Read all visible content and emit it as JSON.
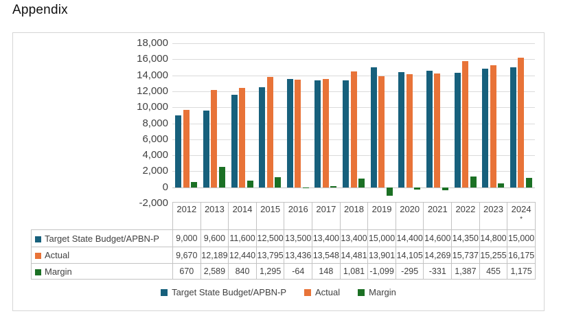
{
  "title": "Appendix",
  "colors": {
    "target": "#17607C",
    "actual": "#E87338",
    "margin": "#1B7024",
    "gridline": "#DADADA",
    "zero_axis_line": "#C4C4C4",
    "table_border": "#C3C3C3",
    "text": "#3F3F3F"
  },
  "chart_data": {
    "type": "bar",
    "title": "Appendix",
    "categories": [
      "2012",
      "2013",
      "2014",
      "2015",
      "2016",
      "2017",
      "2018",
      "2019",
      "2020",
      "2021",
      "2022",
      "2023",
      "2024*"
    ],
    "series": [
      {
        "name": "Target State Budget/APBN-P",
        "color": "#17607C",
        "values": [
          9000,
          9600,
          11600,
          12500,
          13500,
          13400,
          13400,
          15000,
          14400,
          14600,
          14350,
          14800,
          15000
        ]
      },
      {
        "name": "Actual",
        "color": "#E87338",
        "values": [
          9670,
          12189,
          12440,
          13795,
          13436,
          13548,
          14481,
          13901,
          14105,
          14269,
          15737,
          15255,
          16175
        ]
      },
      {
        "name": "Margin",
        "color": "#1B7024",
        "values": [
          670,
          2589,
          840,
          1295,
          -64,
          148,
          1081,
          -1099,
          -295,
          -331,
          1387,
          455,
          1175
        ]
      }
    ],
    "ylim": [
      -2000,
      18000
    ],
    "ytick_step": 2000,
    "yticks": [
      18000,
      16000,
      14000,
      12000,
      10000,
      8000,
      6000,
      4000,
      2000,
      0,
      -2000
    ],
    "grid": true,
    "legend_position": "bottom",
    "data_table_shown": true,
    "xlabel": "",
    "ylabel": ""
  }
}
